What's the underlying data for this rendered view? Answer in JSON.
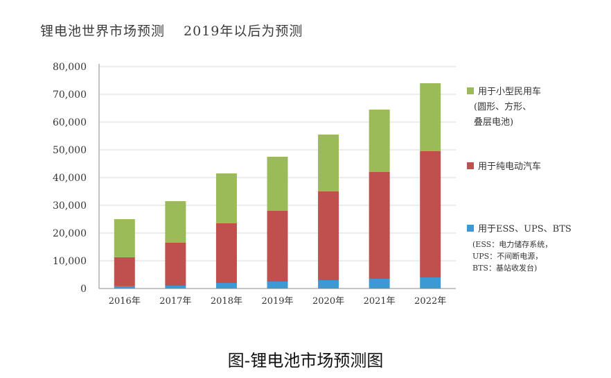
{
  "title": "锂电池世界市场预测　 2019年以后为预测",
  "caption": "图-锂电池市场预测图",
  "colors": {
    "ess": "#3b9ad4",
    "ev": "#c0504d",
    "small": "#9bbb59",
    "axis": "#888888",
    "grid": "#d9d9d9"
  },
  "chart_data": {
    "type": "bar",
    "stacked": true,
    "categories": [
      "2016年",
      "2017年",
      "2018年",
      "2019年",
      "2020年",
      "2021年",
      "2022年"
    ],
    "series": [
      {
        "name": "用于ESS、UPS、BTS",
        "values": [
          800,
          1000,
          2000,
          2500,
          3000,
          3500,
          4000
        ]
      },
      {
        "name": "用于纯电动汽车",
        "values": [
          10500,
          15500,
          21500,
          25500,
          32000,
          38500,
          45500
        ]
      },
      {
        "name": "用于小型民用车",
        "values": [
          13700,
          15000,
          18000,
          19500,
          20500,
          22500,
          24500
        ]
      }
    ],
    "y_ticks": [
      "0",
      "10,000",
      "20,000",
      "30,000",
      "40,000",
      "50,000",
      "60,000",
      "70,000",
      "80,000"
    ],
    "ylim": [
      0,
      80000
    ],
    "legend": [
      {
        "label": "用于小型民用车",
        "sub": [
          "(圆形、方形、",
          "叠层电池)"
        ]
      },
      {
        "label": "用于纯电动汽车",
        "sub": []
      },
      {
        "label": "用于ESS、UPS、BTS",
        "sub": [
          "(ESS：电力储存系统，",
          "UPS：不间断电源，",
          "BTS：基站收发台)"
        ]
      }
    ],
    "legend_position": "right"
  }
}
